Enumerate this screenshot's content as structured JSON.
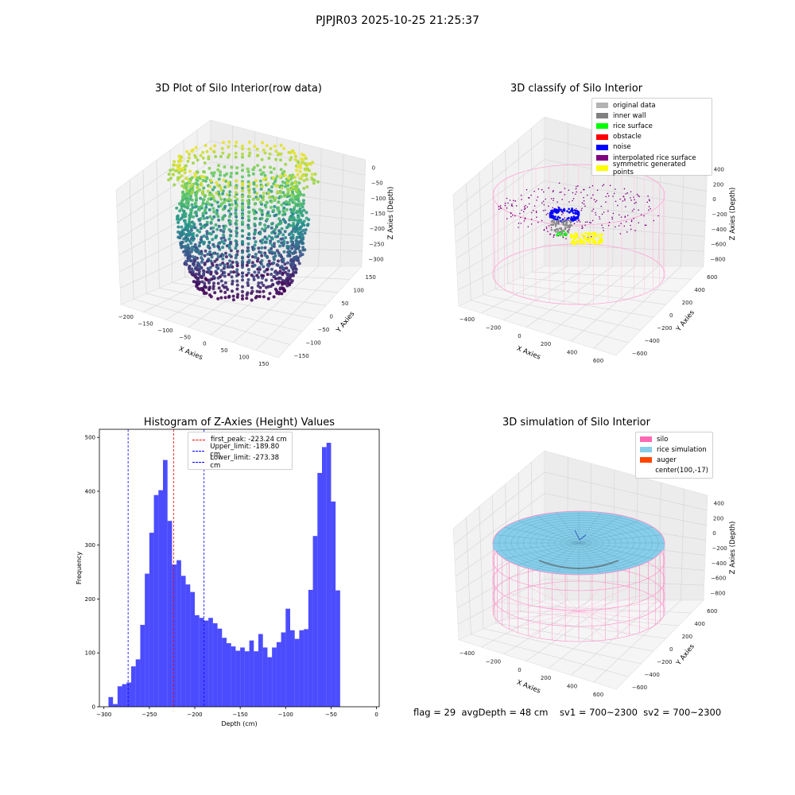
{
  "suptitle": "PJPJR03 2025-10-25 21:25:37",
  "footer": "flag = 29  avgDepth = 48 cm    sv1 = 700~2300  sv2 = 700~2300",
  "chart_data": [
    {
      "type": "scatter3d",
      "title": "3D Plot of Silo Interior(row data)",
      "xlabel": "X Axies",
      "ylabel": "Y Axies",
      "zlabel": "Z Axies (Depth)",
      "xticks": [
        "−200",
        "−150",
        "−100",
        "−50",
        "0",
        "50",
        "100",
        "150"
      ],
      "yticks": [
        "−150",
        "−100",
        "−50",
        "0",
        "50",
        "100",
        "150"
      ],
      "zticks": [
        "−300",
        "−250",
        "−200",
        "−150",
        "−100",
        "−50",
        "0"
      ],
      "xlim": [
        -220,
        175
      ],
      "ylim": [
        -175,
        160
      ],
      "zlim": [
        -310,
        0
      ],
      "colormap": "viridis"
    },
    {
      "type": "scatter3d",
      "title": "3D classify of Silo Interior",
      "xlabel": "X Axies",
      "ylabel": "Y Axies",
      "zlabel": "Z Axies (Depth)",
      "xticks": [
        "−400",
        "−200",
        "0",
        "200",
        "400",
        "600"
      ],
      "yticks": [
        "−600",
        "−400",
        "−200",
        "0",
        "200",
        "400",
        "600"
      ],
      "zticks": [
        "−800",
        "−600",
        "−400",
        "−200",
        "0",
        "200",
        "400"
      ],
      "legend": [
        {
          "label": "original data",
          "color": "#b3b3b3"
        },
        {
          "label": "inner wall",
          "color": "#808080"
        },
        {
          "label": "rice surface",
          "color": "#00ff00"
        },
        {
          "label": "obstacle",
          "color": "#ff0000"
        },
        {
          "label": "noise",
          "color": "#0000ff"
        },
        {
          "label": "interpolated rice surface",
          "color": "#800080"
        },
        {
          "label": "symmetric generated points",
          "color": "#ffff00"
        }
      ],
      "legend_loc": "upper right"
    },
    {
      "type": "bar",
      "title": "Histogram of Z-Axies (Height) Values",
      "xlabel": "Depth (cm)",
      "ylabel": "Frequency",
      "xlim": [
        -305,
        3
      ],
      "ylim": [
        0,
        515
      ],
      "xticks": [
        -300,
        -250,
        -200,
        -150,
        -100,
        -50,
        0
      ],
      "yticks": [
        0,
        100,
        200,
        300,
        400,
        500
      ],
      "bin_start": -295,
      "bin_width": 5,
      "values": [
        18,
        5,
        38,
        42,
        45,
        75,
        88,
        152,
        247,
        323,
        393,
        402,
        458,
        345,
        264,
        272,
        243,
        227,
        213,
        170,
        165,
        160,
        165,
        155,
        145,
        128,
        118,
        112,
        104,
        110,
        103,
        123,
        103,
        135,
        110,
        92,
        110,
        120,
        138,
        182,
        142,
        126,
        142,
        144,
        217,
        317,
        434,
        482,
        490,
        381,
        216
      ],
      "bar_color": "#0000ff",
      "vlines": [
        {
          "x": -223.24,
          "color": "#ff0000",
          "label": "first_peak: -223.24 cm"
        },
        {
          "x": -189.8,
          "color": "#0000ff",
          "label": "Upper_limit: -189.80 cm"
        },
        {
          "x": -273.38,
          "color": "#0000ff",
          "label": "Lower_limit: -273.38 cm"
        }
      ]
    },
    {
      "type": "surface3d",
      "title": "3D simulation of Silo Interior",
      "xlabel": "X Axies",
      "ylabel": "Y Axies",
      "zlabel": "Z Axies (Depth)",
      "xticks": [
        "−400",
        "−200",
        "0",
        "200",
        "400",
        "600"
      ],
      "yticks": [
        "−600",
        "−400",
        "−200",
        "0",
        "200",
        "400",
        "600"
      ],
      "zticks": [
        "−800",
        "−600",
        "−400",
        "−200",
        "0",
        "200",
        "400"
      ],
      "legend": [
        {
          "label": "silo",
          "color": "#ff69b4"
        },
        {
          "label": "rice simulation",
          "color": "#87ceeb"
        },
        {
          "label": "auger",
          "color": "#ff4500"
        },
        {
          "label": "center(100,-17)",
          "color": ""
        }
      ],
      "legend_loc": "upper right"
    }
  ]
}
